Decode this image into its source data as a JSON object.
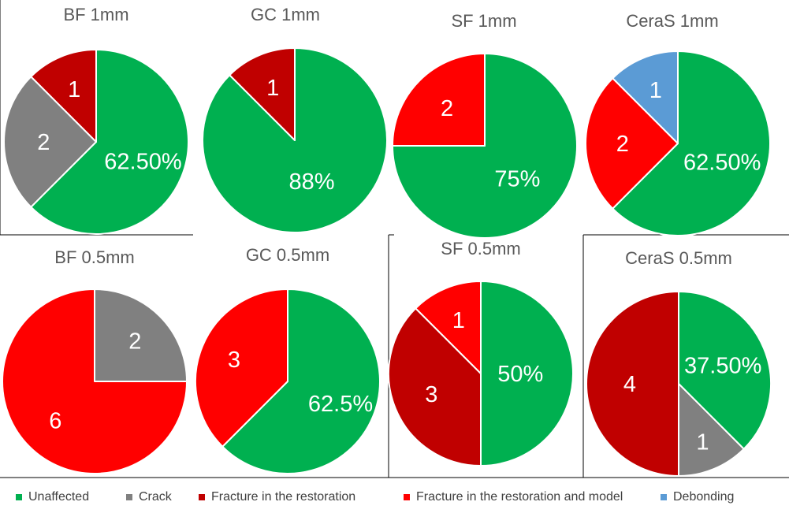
{
  "colors": {
    "unaffected": "#00B050",
    "crack": "#808080",
    "fracture_restoration": "#C00000",
    "fracture_restoration_model": "#FF0000",
    "debonding": "#5B9BD5"
  },
  "legend": [
    {
      "key": "unaffected",
      "label": "Unaffected"
    },
    {
      "key": "crack",
      "label": "Crack"
    },
    {
      "key": "fracture_restoration",
      "label": "Fracture in the restoration"
    },
    {
      "key": "fracture_restoration_model",
      "label": "Fracture in the restoration and model"
    },
    {
      "key": "debonding",
      "label": "Debonding"
    }
  ],
  "chart_data": [
    {
      "type": "pie",
      "title": "BF 1mm",
      "slices": [
        {
          "key": "unaffected",
          "value": 5,
          "label": "62.50%"
        },
        {
          "key": "crack",
          "value": 2,
          "label": "2"
        },
        {
          "key": "fracture_restoration",
          "value": 1,
          "label": "1"
        }
      ]
    },
    {
      "type": "pie",
      "title": "GC 1mm",
      "slices": [
        {
          "key": "unaffected",
          "value": 7,
          "label": "88%"
        },
        {
          "key": "fracture_restoration",
          "value": 1,
          "label": "1"
        }
      ]
    },
    {
      "type": "pie",
      "title": "SF 1mm",
      "slices": [
        {
          "key": "unaffected",
          "value": 6,
          "label": "75%"
        },
        {
          "key": "fracture_restoration_model",
          "value": 2,
          "label": "2"
        }
      ]
    },
    {
      "type": "pie",
      "title": "CeraS 1mm",
      "slices": [
        {
          "key": "unaffected",
          "value": 5,
          "label": "62.50%"
        },
        {
          "key": "fracture_restoration_model",
          "value": 2,
          "label": "2"
        },
        {
          "key": "debonding",
          "value": 1,
          "label": "1"
        }
      ]
    },
    {
      "type": "pie",
      "title": "BF 0.5mm",
      "slices": [
        {
          "key": "crack",
          "value": 2,
          "label": "2"
        },
        {
          "key": "fracture_restoration_model",
          "value": 6,
          "label": "6"
        }
      ]
    },
    {
      "type": "pie",
      "title": "GC  0.5mm",
      "slices": [
        {
          "key": "unaffected",
          "value": 5,
          "label": "62.5%"
        },
        {
          "key": "fracture_restoration_model",
          "value": 3,
          "label": "3"
        }
      ]
    },
    {
      "type": "pie",
      "title": "SF 0.5mm",
      "slices": [
        {
          "key": "unaffected",
          "value": 4,
          "label": "50%"
        },
        {
          "key": "fracture_restoration",
          "value": 3,
          "label": "3"
        },
        {
          "key": "fracture_restoration_model",
          "value": 1,
          "label": "1"
        }
      ]
    },
    {
      "type": "pie",
      "title": "CeraS 0.5mm",
      "slices": [
        {
          "key": "unaffected",
          "value": 3,
          "label": "37.50%"
        },
        {
          "key": "crack",
          "value": 1,
          "label": "1"
        },
        {
          "key": "fracture_restoration",
          "value": 4,
          "label": "4"
        }
      ]
    }
  ]
}
